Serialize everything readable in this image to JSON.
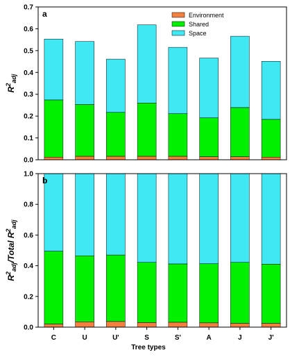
{
  "colors": {
    "Environment": "#f47f3e",
    "Shared": "#00f000",
    "Space": "#40e8f4"
  },
  "x_title": "Tree types",
  "chart_data": [
    {
      "type": "bar",
      "stacked": true,
      "panel_label": "a",
      "ylabel": {
        "main": "R",
        "sup": "2",
        "sub": "adj"
      },
      "ylim": [
        0,
        0.7
      ],
      "yticks": [
        "0.0",
        "0.1",
        "0.2",
        "0.3",
        "0.4",
        "0.5",
        "0.6",
        "0.7"
      ],
      "categories": [
        "C",
        "U",
        "U'",
        "S",
        "S'",
        "A",
        "J",
        "J'"
      ],
      "legend": [
        "Environment",
        "Shared",
        "Space"
      ],
      "legend_position": "top-right",
      "series": [
        {
          "name": "Environment",
          "values": [
            0.012,
            0.016,
            0.016,
            0.016,
            0.016,
            0.014,
            0.014,
            0.012
          ]
        },
        {
          "name": "Shared",
          "values": [
            0.262,
            0.237,
            0.201,
            0.244,
            0.195,
            0.178,
            0.225,
            0.173
          ]
        },
        {
          "name": "Space",
          "values": [
            0.279,
            0.289,
            0.244,
            0.358,
            0.304,
            0.274,
            0.327,
            0.266
          ]
        }
      ]
    },
    {
      "type": "bar",
      "stacked": true,
      "panel_label": "b",
      "ylabel": {
        "main": "R",
        "sup": "2",
        "sub": "adj",
        "mid": "/Total R",
        "sup2": "2",
        "sub2": "adj"
      },
      "ylim": [
        0,
        1.0
      ],
      "yticks": [
        "0.0",
        "0.2",
        "0.4",
        "0.6",
        "0.8",
        "1.0"
      ],
      "categories": [
        "C",
        "U",
        "U'",
        "S",
        "S'",
        "A",
        "J",
        "J'"
      ],
      "series": [
        {
          "name": "Environment",
          "values": [
            0.02,
            0.035,
            0.037,
            0.03,
            0.032,
            0.028,
            0.025,
            0.025
          ]
        },
        {
          "name": "Shared",
          "values": [
            0.475,
            0.43,
            0.433,
            0.392,
            0.38,
            0.385,
            0.397,
            0.385
          ]
        },
        {
          "name": "Space",
          "values": [
            0.505,
            0.535,
            0.53,
            0.578,
            0.588,
            0.587,
            0.578,
            0.59
          ]
        }
      ]
    }
  ]
}
